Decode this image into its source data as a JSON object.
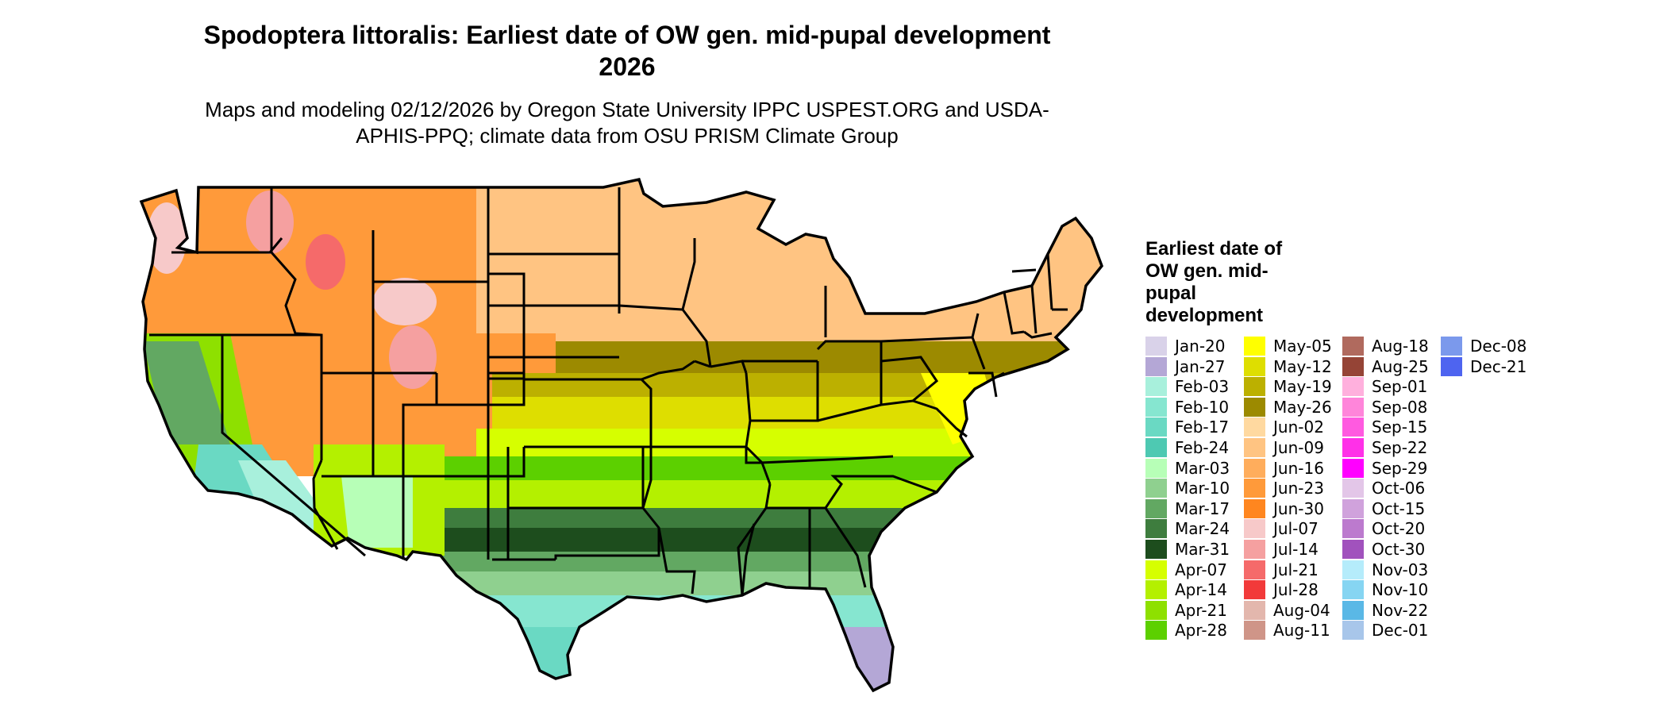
{
  "title": "Spodoptera littoralis: Earliest date of OW gen. mid-pupal development 2026",
  "subtitle": "Maps and modeling 02/12/2026 by Oregon State University IPPC USPEST.ORG and USDA-APHIS-PPQ; climate data from OSU PRISM Climate Group",
  "legend": {
    "title": "Earliest date of OW gen. mid-pupal development",
    "items": [
      {
        "label": "Jan-20",
        "color": "#d9d2e9"
      },
      {
        "label": "Jan-27",
        "color": "#b4a7d6"
      },
      {
        "label": "Feb-03",
        "color": "#a8f0dc"
      },
      {
        "label": "Feb-10",
        "color": "#86e6d0"
      },
      {
        "label": "Feb-17",
        "color": "#6ad9c3"
      },
      {
        "label": "Feb-24",
        "color": "#4ec9b2"
      },
      {
        "label": "Mar-03",
        "color": "#b7ffb7"
      },
      {
        "label": "Mar-10",
        "color": "#8fd08f"
      },
      {
        "label": "Mar-17",
        "color": "#62a862"
      },
      {
        "label": "Mar-24",
        "color": "#3e7d3e"
      },
      {
        "label": "Mar-31",
        "color": "#1d4d1d"
      },
      {
        "label": "Apr-07",
        "color": "#d6ff00"
      },
      {
        "label": "Apr-14",
        "color": "#b4f000"
      },
      {
        "label": "Apr-21",
        "color": "#8ee000"
      },
      {
        "label": "Apr-28",
        "color": "#5cd000"
      },
      {
        "label": "May-05",
        "color": "#ffff00"
      },
      {
        "label": "May-12",
        "color": "#dede00"
      },
      {
        "label": "May-19",
        "color": "#bcb000"
      },
      {
        "label": "May-26",
        "color": "#9c8a00"
      },
      {
        "label": "Jun-02",
        "color": "#ffd9a0"
      },
      {
        "label": "Jun-09",
        "color": "#ffc482"
      },
      {
        "label": "Jun-16",
        "color": "#ffad5c"
      },
      {
        "label": "Jun-23",
        "color": "#ff9a3a"
      },
      {
        "label": "Jun-30",
        "color": "#ff861f"
      },
      {
        "label": "Jul-07",
        "color": "#f7c9c9"
      },
      {
        "label": "Jul-14",
        "color": "#f5a0a0"
      },
      {
        "label": "Jul-21",
        "color": "#f56a6a"
      },
      {
        "label": "Jul-28",
        "color": "#f23a3a"
      },
      {
        "label": "Aug-04",
        "color": "#e3b7ad"
      },
      {
        "label": "Aug-11",
        "color": "#cf9588"
      },
      {
        "label": "Aug-18",
        "color": "#b06a5e"
      },
      {
        "label": "Aug-25",
        "color": "#954436"
      },
      {
        "label": "Sep-01",
        "color": "#ffb0dd"
      },
      {
        "label": "Sep-08",
        "color": "#ff85da"
      },
      {
        "label": "Sep-15",
        "color": "#ff5ae0"
      },
      {
        "label": "Sep-22",
        "color": "#ff30e8"
      },
      {
        "label": "Sep-29",
        "color": "#ff00ff"
      },
      {
        "label": "Oct-06",
        "color": "#e3c6e8"
      },
      {
        "label": "Oct-15",
        "color": "#d0a2dc"
      },
      {
        "label": "Oct-20",
        "color": "#bc7ace"
      },
      {
        "label": "Oct-30",
        "color": "#a152bd"
      },
      {
        "label": "Nov-03",
        "color": "#b5ecfb"
      },
      {
        "label": "Nov-10",
        "color": "#86d5f2"
      },
      {
        "label": "Nov-22",
        "color": "#5ab8e6"
      },
      {
        "label": "Dec-01",
        "color": "#a8c6ea"
      },
      {
        "label": "Dec-08",
        "color": "#7b99ec"
      },
      {
        "label": "Dec-21",
        "color": "#4e64f0"
      }
    ]
  }
}
